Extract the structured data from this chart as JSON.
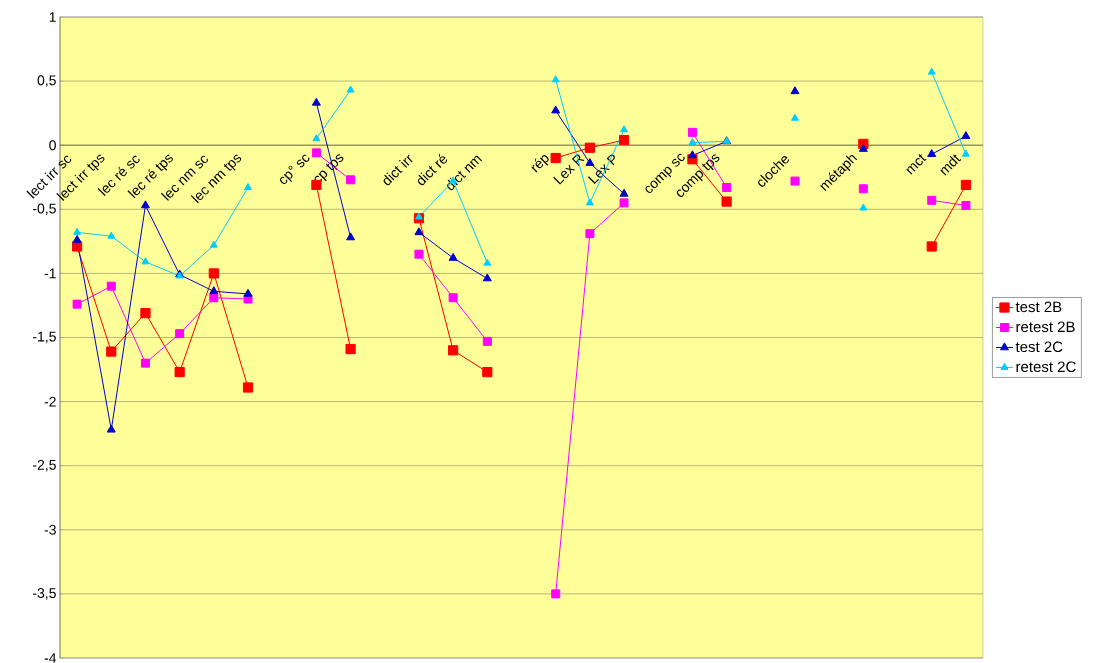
{
  "chart_data": {
    "type": "line",
    "categories": [
      "lect irr sc",
      "lect irr tps",
      "lec ré sc",
      "lec ré tps",
      "lec nm sc",
      "lec nm tps",
      null,
      "cp° sc",
      "cp tps",
      null,
      "dict irr",
      "dict ré",
      "dict nm",
      null,
      "rép",
      "Lex R",
      "Lex P",
      null,
      "comp sc",
      "comp tps",
      null,
      "cloche",
      null,
      "métaph",
      null,
      "mct",
      "mdt"
    ],
    "series": [
      {
        "name": "test 2B",
        "color": "#ff0000",
        "marker": "square",
        "values": [
          -0.79,
          -1.61,
          -1.31,
          -1.77,
          -1.0,
          -1.89,
          null,
          -0.31,
          -1.59,
          null,
          -0.57,
          -1.6,
          -1.77,
          null,
          -0.1,
          -0.02,
          0.04,
          null,
          -0.11,
          -0.44,
          null,
          null,
          null,
          0.01,
          null,
          -0.79,
          -0.31
        ]
      },
      {
        "name": "retest 2B",
        "color": "#ff00ff",
        "marker": "square",
        "values": [
          -1.24,
          -1.1,
          -1.7,
          -1.47,
          -1.19,
          -1.2,
          null,
          -0.06,
          -0.27,
          null,
          -0.85,
          -1.19,
          -1.53,
          null,
          -3.5,
          -0.69,
          -0.45,
          null,
          0.1,
          -0.33,
          null,
          -0.28,
          null,
          -0.34,
          null,
          -0.43,
          -0.47
        ]
      },
      {
        "name": "test 2C",
        "color": "#0000cc",
        "marker": "triangle",
        "values": [
          -0.74,
          -2.22,
          -0.47,
          -1.01,
          -1.14,
          -1.16,
          null,
          0.33,
          -0.72,
          null,
          -0.68,
          -0.88,
          -1.04,
          null,
          0.27,
          -0.14,
          -0.38,
          null,
          -0.08,
          0.03,
          null,
          0.42,
          null,
          -0.03,
          null,
          -0.07,
          0.07
        ]
      },
      {
        "name": "retest 2C",
        "color": "#00ccff",
        "marker": "triangle",
        "values": [
          -0.68,
          -0.71,
          -0.91,
          -1.02,
          -0.78,
          -0.33,
          null,
          0.05,
          0.43,
          null,
          -0.56,
          -0.28,
          -0.92,
          null,
          0.51,
          -0.45,
          0.12,
          null,
          0.02,
          0.03,
          null,
          0.21,
          null,
          -0.49,
          null,
          0.57,
          -0.07
        ]
      }
    ],
    "ylim": [
      -4,
      1
    ],
    "yticks": [
      -4,
      {
        "value": -3.5,
        "label": "-3,5"
      },
      -3,
      {
        "value": -2.5,
        "label": "-2,5"
      },
      -2,
      {
        "value": -1.5,
        "label": "-1,5"
      },
      -1,
      {
        "value": -0.5,
        "label": "-0,5"
      },
      0,
      {
        "value": 0.5,
        "label": "0,5"
      },
      1
    ],
    "grid": "y",
    "legend": "right",
    "line_style": "solid"
  }
}
